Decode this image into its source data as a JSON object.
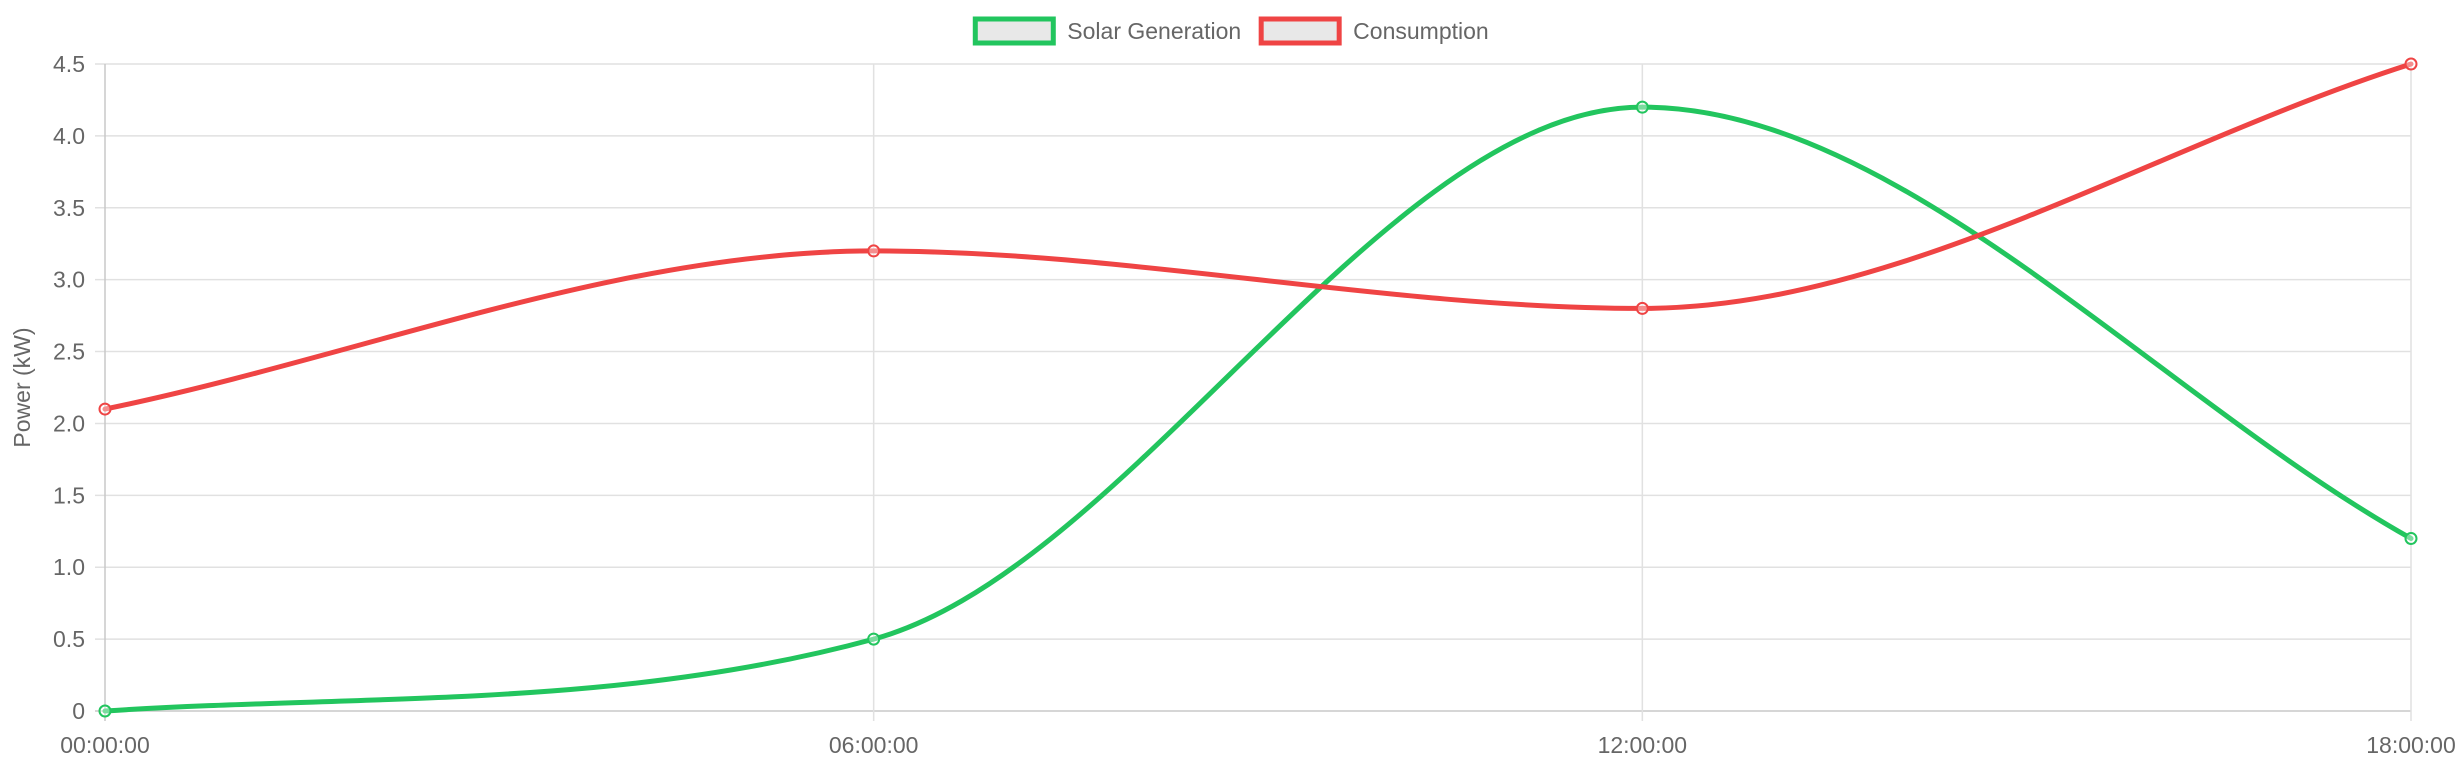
{
  "chart_data": {
    "type": "line",
    "title": "",
    "xlabel": "",
    "ylabel": "Power (kW)",
    "categories": [
      "00:00:00",
      "06:00:00",
      "12:00:00",
      "18:00:00"
    ],
    "ylim": [
      0,
      4.5
    ],
    "yticks": [
      "0",
      "0.5",
      "1.0",
      "1.5",
      "2.0",
      "2.5",
      "3.0",
      "3.5",
      "4.0",
      "4.5"
    ],
    "y_tick_values": [
      0,
      0.5,
      1.0,
      1.5,
      2.0,
      2.5,
      3.0,
      3.5,
      4.0,
      4.5
    ],
    "grid": true,
    "legend_position": "top-center",
    "series": [
      {
        "name": "Solar Generation",
        "color": "#22c55e",
        "values": [
          0,
          0.5,
          4.2,
          1.2
        ]
      },
      {
        "name": "Consumption",
        "color": "#ef4444",
        "values": [
          2.1,
          3.2,
          2.8,
          4.5
        ]
      }
    ]
  }
}
